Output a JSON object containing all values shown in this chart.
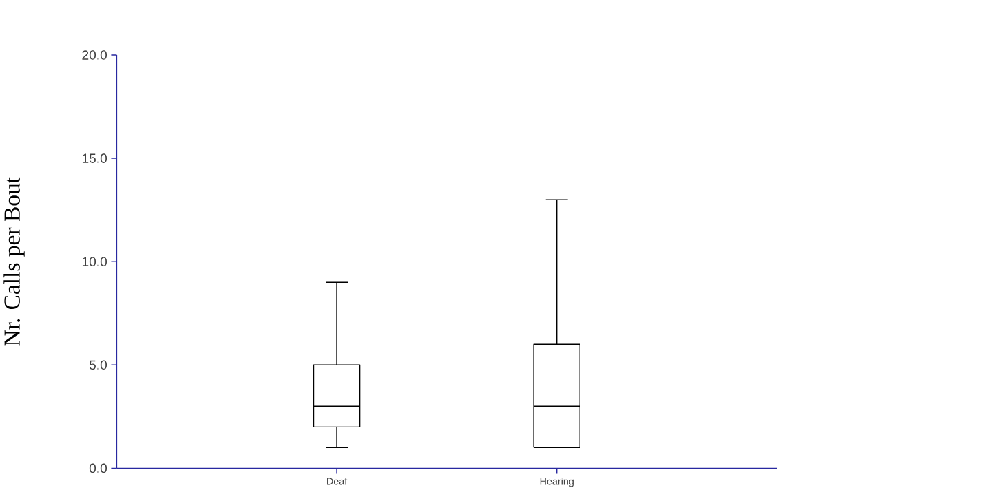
{
  "chart_data": {
    "type": "box",
    "ylabel": "Nr. Calls per Bout",
    "categories": [
      "Deaf",
      "Hearing"
    ],
    "boxes": [
      {
        "low": 1,
        "q1": 2,
        "median": 3,
        "q3": 5,
        "high": 9
      },
      {
        "low": 1,
        "q1": 1,
        "median": 3,
        "q3": 6,
        "high": 13
      }
    ],
    "ylim": [
      0,
      20
    ],
    "yticks": [
      {
        "value": 0,
        "label": "0.0"
      },
      {
        "value": 5,
        "label": "5.0"
      },
      {
        "value": 10,
        "label": "10.0"
      },
      {
        "value": 15,
        "label": "15.0"
      },
      {
        "value": 20,
        "label": "20.0"
      }
    ],
    "grid": false
  }
}
